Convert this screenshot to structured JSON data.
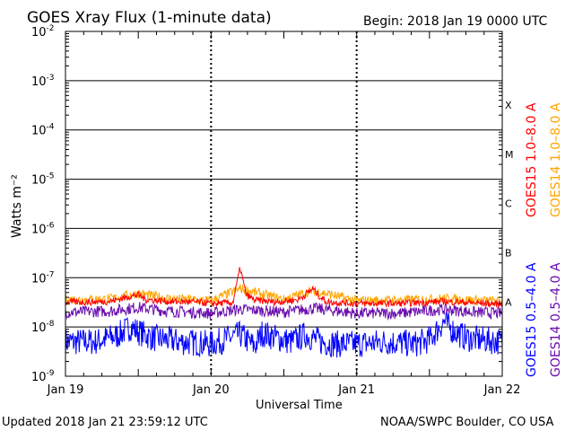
{
  "title": "GOES Xray Flux (1-minute data)",
  "begin": "Begin:  2018 Jan 19 0000 UTC",
  "updated": "Updated 2018 Jan 21 23:59:12 UTC",
  "credit": "NOAA/SWPC Boulder, CO USA",
  "colors": {
    "goes15_long": "#ff0000",
    "goes14_long": "#ffa500",
    "goes15_short": "#0000ff",
    "goes14_short": "#6a0dad",
    "axis": "#000000"
  },
  "chart_data": {
    "type": "line",
    "title": "GOES Xray Flux (1-minute data)",
    "xlabel": "Universal Time",
    "ylabel": "Watts m⁻²",
    "yscale": "log",
    "ylim": [
      1e-09,
      0.01
    ],
    "xlim": [
      0,
      3
    ],
    "x_ticks": [
      {
        "value": 0,
        "label": "Jan 19"
      },
      {
        "value": 1,
        "label": "Jan 20"
      },
      {
        "value": 2,
        "label": "Jan 21"
      },
      {
        "value": 3,
        "label": "Jan 22"
      }
    ],
    "y_ticks": [
      {
        "exp": "-9"
      },
      {
        "exp": "-8"
      },
      {
        "exp": "-7"
      },
      {
        "exp": "-6"
      },
      {
        "exp": "-5"
      },
      {
        "exp": "-4"
      },
      {
        "exp": "-3"
      },
      {
        "exp": "-2"
      }
    ],
    "flare_classes": [
      {
        "label": "A",
        "value": 1e-08
      },
      {
        "label": "B",
        "value": 1e-07
      },
      {
        "label": "C",
        "value": 1e-06
      },
      {
        "label": "M",
        "value": 1e-05
      },
      {
        "label": "X",
        "value": 0.0001
      }
    ],
    "grid": "horizontal at each decade, vertical at day boundaries",
    "legend_position": "right",
    "series": [
      {
        "name": "GOES15 1.0–8.0 A",
        "color": "#ff0000",
        "x": [
          0,
          0.15,
          0.3,
          0.45,
          0.5,
          0.55,
          0.7,
          0.9,
          1.0,
          1.15,
          1.2,
          1.24,
          1.3,
          1.45,
          1.6,
          1.7,
          1.75,
          1.8,
          2.0,
          2.3,
          2.6,
          2.8,
          3.0
        ],
        "y": [
          3.2e-08,
          3.2e-08,
          3.3e-08,
          4.2e-08,
          4.5e-08,
          3.6e-08,
          3.3e-08,
          3.2e-08,
          3e-08,
          3.1e-08,
          1.6e-07,
          4.5e-08,
          3.5e-08,
          3.2e-08,
          3.6e-08,
          6e-08,
          4e-08,
          3.2e-08,
          3e-08,
          3e-08,
          3.3e-08,
          3.1e-08,
          2.9e-08
        ]
      },
      {
        "name": "GOES14 1.0–8.0 A",
        "color": "#ffa500",
        "x": [
          0,
          0.3,
          0.5,
          0.7,
          1.0,
          1.2,
          1.5,
          1.7,
          2.0,
          2.3,
          2.6,
          2.8,
          3.0
        ],
        "y": [
          3.6e-08,
          3.7e-08,
          4.8e-08,
          3.8e-08,
          3.4e-08,
          6e-08,
          3.6e-08,
          5.5e-08,
          3.4e-08,
          3.5e-08,
          3.8e-08,
          3.5e-08,
          3.3e-08
        ]
      },
      {
        "name": "GOES14 0.5–4.0 A",
        "color": "#6a0dad",
        "x": [
          0,
          0.3,
          0.5,
          0.7,
          1.0,
          1.2,
          1.5,
          1.7,
          2.0,
          2.3,
          2.6,
          2.8,
          3.0
        ],
        "y": [
          2e-08,
          2.1e-08,
          2.5e-08,
          2.1e-08,
          1.9e-08,
          2.3e-08,
          2e-08,
          2.4e-08,
          1.9e-08,
          1.9e-08,
          2.3e-08,
          2e-08,
          1.9e-08
        ]
      },
      {
        "name": "GOES15 0.5–4.0 A",
        "color": "#0000ff",
        "x": [
          0,
          0.2,
          0.35,
          0.45,
          0.5,
          0.6,
          0.8,
          1.0,
          1.2,
          1.3,
          1.35,
          1.45,
          1.55,
          1.65,
          1.75,
          1.85,
          2.0,
          2.2,
          2.4,
          2.5,
          2.6,
          2.65,
          2.75,
          2.85,
          3.0
        ],
        "y": [
          5e-09,
          5e-09,
          6.5e-09,
          1e-08,
          8e-09,
          6e-09,
          5e-09,
          4.5e-09,
          7e-09,
          4e-09,
          7.5e-09,
          6e-09,
          5e-09,
          7e-09,
          5e-09,
          4.5e-09,
          4.5e-09,
          5e-09,
          4.5e-09,
          5.5e-09,
          1.3e-08,
          9e-09,
          6e-09,
          5.5e-09,
          5e-09
        ]
      }
    ]
  }
}
